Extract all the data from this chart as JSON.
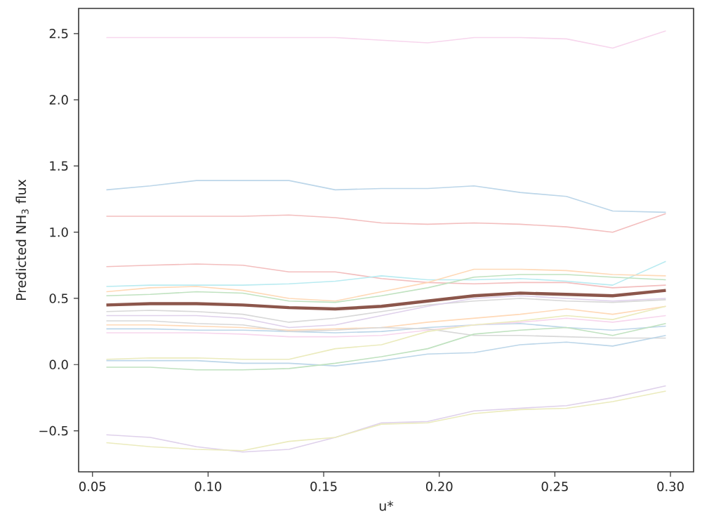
{
  "chart_data": {
    "type": "line",
    "xlabel": "u*",
    "ylabel": "Predicted NH$_{3}$ flux",
    "x": [
      0.056,
      0.075,
      0.095,
      0.115,
      0.135,
      0.155,
      0.175,
      0.195,
      0.215,
      0.235,
      0.255,
      0.275,
      0.298
    ],
    "xlim": [
      0.044,
      0.31
    ],
    "ylim": [
      -0.81,
      2.69
    ],
    "xticks": [
      0.05,
      {
        "value": 0.1,
        "label": "0.10"
      },
      0.15,
      {
        "value": 0.2,
        "label": "0.20"
      },
      0.25,
      {
        "value": 0.3,
        "label": "0.30"
      }
    ],
    "yticks": [
      {
        "value": -0.5,
        "label": "−0.5"
      },
      {
        "value": 0,
        "label": "0.0"
      },
      0.5,
      {
        "value": 1,
        "label": "1.0"
      },
      1.5,
      {
        "value": 2,
        "label": "2.0"
      },
      2.5
    ],
    "grid": false,
    "marker": "none",
    "line_style": "solid",
    "series": [
      {
        "color": "#f7d6ed",
        "values": [
          2.47,
          2.47,
          2.47,
          2.47,
          2.47,
          2.47,
          2.45,
          2.43,
          2.47,
          2.47,
          2.46,
          2.39,
          2.52
        ]
      },
      {
        "color": "#bcd6e9",
        "values": [
          1.32,
          1.35,
          1.39,
          1.39,
          1.39,
          1.32,
          1.33,
          1.33,
          1.35,
          1.3,
          1.27,
          1.16,
          1.15
        ]
      },
      {
        "color": "#f3bebe",
        "values": [
          1.12,
          1.12,
          1.12,
          1.12,
          1.13,
          1.11,
          1.07,
          1.06,
          1.07,
          1.06,
          1.04,
          1.0,
          1.14
        ]
      },
      {
        "color": "#dfd1eb",
        "values": [
          -0.53,
          -0.55,
          -0.62,
          -0.66,
          -0.64,
          -0.55,
          -0.44,
          -0.43,
          -0.35,
          -0.33,
          -0.31,
          -0.25,
          -0.16
        ]
      },
      {
        "color": "#ebebbd",
        "values": [
          -0.59,
          -0.62,
          -0.64,
          -0.65,
          -0.58,
          -0.55,
          -0.45,
          -0.44,
          -0.37,
          -0.34,
          -0.33,
          -0.28,
          -0.2
        ]
      },
      {
        "color": "#f3bebe",
        "values": [
          0.74,
          0.75,
          0.76,
          0.75,
          0.7,
          0.7,
          0.65,
          0.62,
          0.61,
          0.62,
          0.62,
          0.58,
          0.6
        ]
      },
      {
        "color": "#b9ebf1",
        "values": [
          0.59,
          0.6,
          0.6,
          0.6,
          0.61,
          0.63,
          0.67,
          0.64,
          0.64,
          0.65,
          0.63,
          0.6,
          0.78
        ]
      },
      {
        "color": "#ffd9b7",
        "values": [
          0.55,
          0.58,
          0.59,
          0.56,
          0.5,
          0.48,
          0.55,
          0.62,
          0.72,
          0.72,
          0.71,
          0.68,
          0.67
        ]
      },
      {
        "color": "#c0e2c0",
        "values": [
          0.52,
          0.53,
          0.55,
          0.54,
          0.48,
          0.47,
          0.52,
          0.58,
          0.66,
          0.68,
          0.68,
          0.66,
          0.64
        ]
      },
      {
        "color": "#d8d8d8",
        "values": [
          0.4,
          0.41,
          0.4,
          0.38,
          0.32,
          0.35,
          0.4,
          0.45,
          0.48,
          0.5,
          0.48,
          0.47,
          0.49
        ]
      },
      {
        "color": "#dfd1eb",
        "values": [
          0.37,
          0.37,
          0.37,
          0.35,
          0.28,
          0.3,
          0.37,
          0.44,
          0.5,
          0.52,
          0.5,
          0.48,
          0.5
        ]
      },
      {
        "color": "#ffd9b7",
        "values": [
          0.3,
          0.3,
          0.29,
          0.28,
          0.26,
          0.27,
          0.28,
          0.32,
          0.35,
          0.38,
          0.42,
          0.38,
          0.44
        ]
      },
      {
        "color": "#bcd6e9",
        "values": [
          0.27,
          0.27,
          0.26,
          0.26,
          0.25,
          0.24,
          0.25,
          0.28,
          0.3,
          0.31,
          0.28,
          0.26,
          0.29
        ]
      },
      {
        "color": "#f7d6ed",
        "values": [
          0.24,
          0.24,
          0.24,
          0.23,
          0.21,
          0.21,
          0.22,
          0.26,
          0.3,
          0.32,
          0.35,
          0.32,
          0.37
        ]
      },
      {
        "color": "#d8d8d8",
        "values": [
          0.33,
          0.33,
          0.31,
          0.3,
          0.25,
          0.26,
          0.28,
          0.27,
          0.22,
          0.22,
          0.21,
          0.2,
          0.2
        ]
      },
      {
        "color": "#ebebbd",
        "values": [
          0.04,
          0.05,
          0.05,
          0.04,
          0.04,
          0.12,
          0.15,
          0.25,
          0.3,
          0.33,
          0.37,
          0.34,
          0.44
        ]
      },
      {
        "color": "#bcd6e9",
        "values": [
          0.03,
          0.03,
          0.03,
          0.01,
          0.01,
          -0.01,
          0.03,
          0.08,
          0.09,
          0.15,
          0.17,
          0.14,
          0.22
        ]
      },
      {
        "color": "#c0e2c0",
        "values": [
          -0.02,
          -0.02,
          -0.04,
          -0.04,
          -0.03,
          0.01,
          0.06,
          0.12,
          0.23,
          0.26,
          0.28,
          0.22,
          0.31
        ]
      },
      {
        "color": "#8c564b",
        "values": [
          0.45,
          0.46,
          0.46,
          0.45,
          0.43,
          0.42,
          0.44,
          0.48,
          0.52,
          0.54,
          0.53,
          0.52,
          0.56
        ]
      }
    ]
  }
}
